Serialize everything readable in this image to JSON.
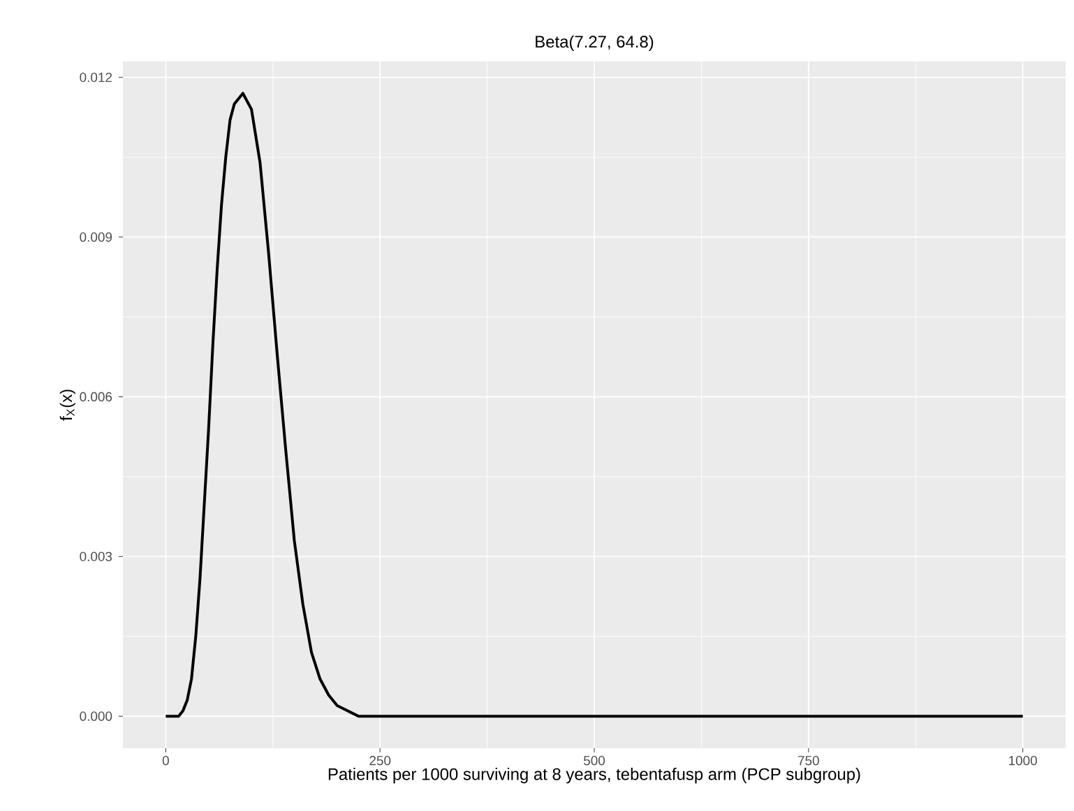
{
  "chart_data": {
    "type": "line",
    "title": "Beta(7.27, 64.8)",
    "xlabel": "Patients per 1000 surviving at 8 years, tebentafusp arm (PCP subgroup)",
    "ylabel": "f$_{X}$(x)",
    "series": [
      {
        "color": "#000000",
        "x": [
          0,
          15,
          20,
          25,
          30,
          35,
          40,
          45,
          50,
          55,
          60,
          65,
          70,
          75,
          80,
          90,
          100,
          110,
          120,
          130,
          140,
          150,
          160,
          170,
          180,
          190,
          200,
          225,
          250,
          300,
          400,
          500,
          600,
          700,
          800,
          900,
          1000
        ],
        "values": [
          0,
          0,
          0.0001,
          0.0003,
          0.0007,
          0.0015,
          0.0026,
          0.004,
          0.0054,
          0.007,
          0.0084,
          0.0096,
          0.0105,
          0.0112,
          0.0115,
          0.0117,
          0.0114,
          0.0104,
          0.0087,
          0.0068,
          0.005,
          0.0033,
          0.0021,
          0.0012,
          0.0007,
          0.0004,
          0.0002,
          0,
          0,
          0,
          0,
          0,
          0,
          0,
          0,
          0,
          0
        ]
      }
    ],
    "xlim": [
      -50,
      1050
    ],
    "ylim": [
      -0.0006,
      0.0123
    ],
    "xticks": [
      0,
      250,
      500,
      750,
      1000
    ],
    "yticks": [
      {
        "value": 0,
        "label": "0.000"
      },
      {
        "value": 0.003,
        "label": "0.003"
      },
      {
        "value": 0.006,
        "label": "0.006"
      },
      {
        "value": 0.009,
        "label": "0.009"
      },
      {
        "value": 0.012,
        "label": "0.012"
      }
    ],
    "grid": true,
    "marker": "none",
    "line_style": "solid"
  }
}
